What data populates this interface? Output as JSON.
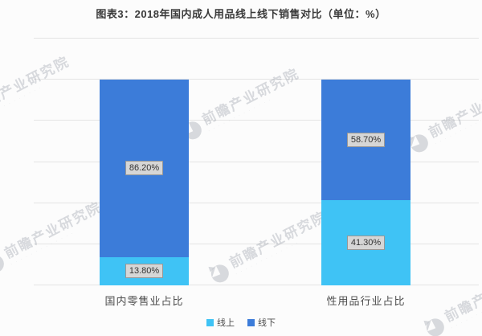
{
  "watermark": {
    "text": "前瞻产业研究院",
    "subtext": "· · · · · · · · · · · · ·"
  },
  "chart_data": {
    "type": "bar",
    "stacked": true,
    "title": "图表3：2018年国内成人用品线上线下销售对比（单位：%）",
    "categories": [
      "国内零售业占比",
      "性用品行业占比"
    ],
    "series": [
      {
        "name": "线上",
        "color": "#3fc3f5",
        "values": [
          13.8,
          41.3
        ]
      },
      {
        "name": "线下",
        "color": "#3c7cd9",
        "values": [
          86.2,
          58.7
        ]
      }
    ],
    "data_labels": [
      [
        "13.80%",
        "41.30%"
      ],
      [
        "86.20%",
        "58.70%"
      ]
    ],
    "unit": "%",
    "ylim": [
      0,
      120
    ],
    "grid_step": 20,
    "grid": "horizontal",
    "y_tick_labels_visible": false,
    "legend_position": "bottom"
  },
  "colors": {
    "background": "#fcfcfc",
    "gridline": "#e4e4e4",
    "online_blue": "#3fc3f5",
    "offline_blue": "#3c7cd9",
    "label_box_bg": "#d6d6d6",
    "label_box_border": "#979797",
    "text": "#3a3a3a"
  }
}
